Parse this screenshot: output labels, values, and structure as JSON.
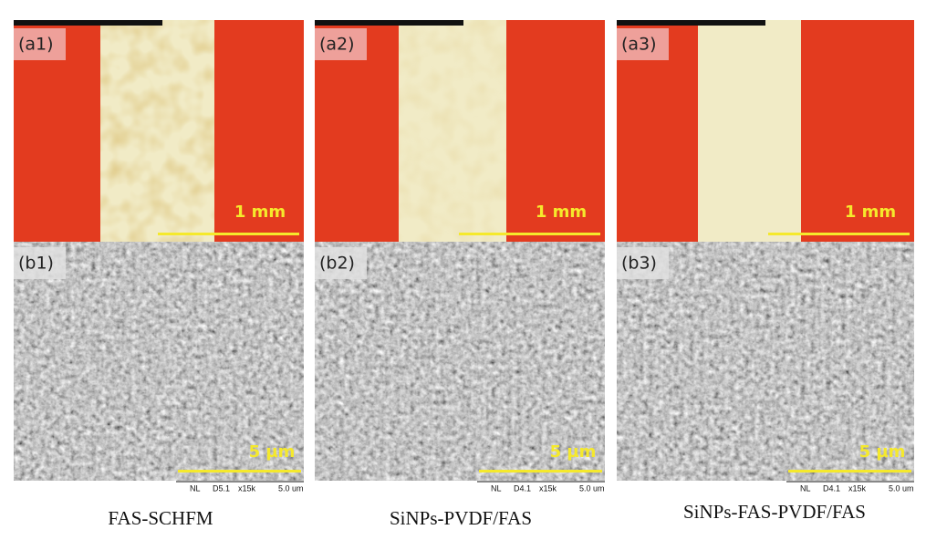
{
  "panels": [
    {
      "top_label": "(a1)",
      "top_scale": "1 mm",
      "bottom_label": "(b1)",
      "bottom_scale": "5 µm",
      "sem_info": [
        "NL",
        "D5.1",
        "x15k",
        "5.0 um"
      ],
      "caption": "FAS-SCHFM"
    },
    {
      "top_label": "(a2)",
      "top_scale": "1 mm",
      "bottom_label": "(b2)",
      "bottom_scale": "5 µm",
      "sem_info": [
        "NL",
        "D4.1",
        "x15k",
        "5.0 um"
      ],
      "caption": "SiNPs-PVDF/FAS"
    },
    {
      "top_label": "(a3)",
      "top_scale": "1 mm",
      "bottom_label": "(b3)",
      "bottom_scale": "5 µm",
      "sem_info": [
        "NL",
        "D4.1",
        "x15k",
        "5.0 um"
      ],
      "caption": "SiNPs-FAS-PVDF/FAS"
    }
  ]
}
